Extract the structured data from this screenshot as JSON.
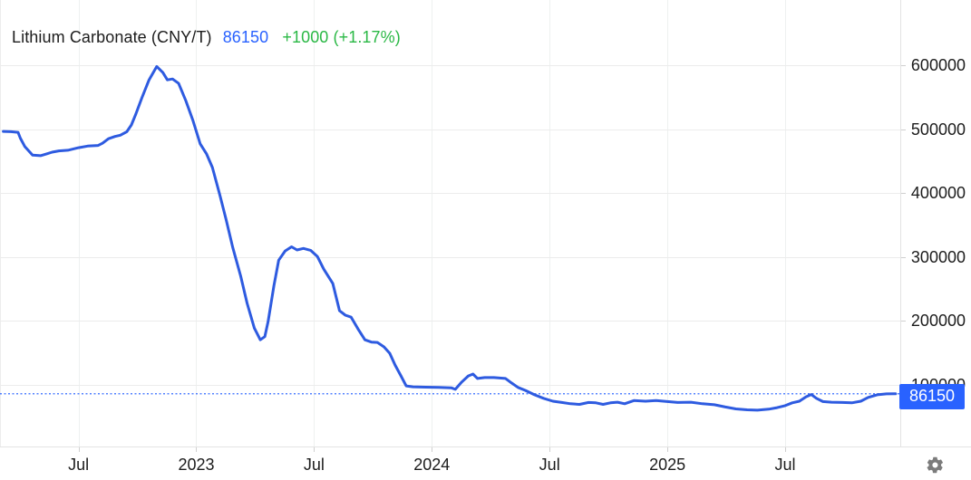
{
  "header": {
    "instrument": "Lithium Carbonate (CNY/T)",
    "price": "86150",
    "change": "+1000 (+1.17%)",
    "price_color": "#2962ff",
    "change_color": "#2ab845",
    "text_color": "#1c1c1c"
  },
  "price_marker": {
    "label": "86150",
    "value": 86150,
    "bg_color": "#2962ff",
    "text_color": "#ffffff"
  },
  "icons": {
    "settings": "gear-icon"
  },
  "chart_data": {
    "type": "line",
    "title": "Lithium Carbonate (CNY/T)",
    "unit": "CNY/T",
    "grid": true,
    "legend": false,
    "line_color": "#2e5be0",
    "current_price_line": {
      "value": 86150,
      "style": "dotted",
      "color": "#2962ff"
    },
    "y_ticks": [
      600000,
      500000,
      400000,
      300000,
      200000,
      100000
    ],
    "ylim": [
      0,
      700000
    ],
    "xlim": [
      "2022-03-01",
      "2025-12-20"
    ],
    "x_ticks": [
      {
        "date": "2022-07-01",
        "label": "Jul"
      },
      {
        "date": "2023-01-01",
        "label": "2023"
      },
      {
        "date": "2023-07-01",
        "label": "Jul"
      },
      {
        "date": "2024-01-01",
        "label": "2024"
      },
      {
        "date": "2024-07-01",
        "label": "Jul"
      },
      {
        "date": "2025-01-01",
        "label": "2025"
      },
      {
        "date": "2025-07-01",
        "label": "Jul"
      }
    ],
    "series": [
      {
        "name": "Lithium Carbonate price",
        "color": "#2e5be0",
        "points": [
          [
            "2022-03-06",
            496500
          ],
          [
            "2022-03-18",
            496000
          ],
          [
            "2022-03-29",
            495000
          ],
          [
            "2022-04-02",
            486000
          ],
          [
            "2022-04-09",
            473000
          ],
          [
            "2022-04-21",
            459500
          ],
          [
            "2022-05-03",
            458500
          ],
          [
            "2022-05-13",
            461500
          ],
          [
            "2022-05-21",
            464000
          ],
          [
            "2022-06-01",
            466000
          ],
          [
            "2022-06-15",
            467000
          ],
          [
            "2022-07-01",
            471000
          ],
          [
            "2022-07-15",
            473500
          ],
          [
            "2022-08-01",
            474500
          ],
          [
            "2022-08-08",
            478000
          ],
          [
            "2022-08-17",
            485000
          ],
          [
            "2022-08-27",
            488500
          ],
          [
            "2022-09-05",
            490500
          ],
          [
            "2022-09-15",
            496000
          ],
          [
            "2022-09-22",
            506500
          ],
          [
            "2022-09-29",
            523500
          ],
          [
            "2022-10-08",
            549000
          ],
          [
            "2022-10-19",
            577000
          ],
          [
            "2022-10-31",
            598000
          ],
          [
            "2022-11-10",
            588500
          ],
          [
            "2022-11-17",
            577000
          ],
          [
            "2022-11-25",
            578500
          ],
          [
            "2022-12-04",
            571500
          ],
          [
            "2022-12-15",
            545000
          ],
          [
            "2022-12-26",
            514000
          ],
          [
            "2023-01-07",
            477000
          ],
          [
            "2023-01-17",
            461000
          ],
          [
            "2023-01-26",
            440000
          ],
          [
            "2023-02-07",
            397500
          ],
          [
            "2023-02-17",
            358000
          ],
          [
            "2023-02-27",
            315000
          ],
          [
            "2023-03-09",
            270000
          ],
          [
            "2023-03-19",
            227500
          ],
          [
            "2023-03-30",
            189000
          ],
          [
            "2023-04-09",
            170500
          ],
          [
            "2023-04-16",
            175500
          ],
          [
            "2023-04-21",
            199000
          ],
          [
            "2023-04-30",
            255000
          ],
          [
            "2023-05-07",
            295000
          ],
          [
            "2023-05-17",
            309500
          ],
          [
            "2023-05-27",
            316000
          ],
          [
            "2023-06-05",
            311000
          ],
          [
            "2023-06-15",
            313500
          ],
          [
            "2023-06-26",
            310500
          ],
          [
            "2023-07-06",
            301000
          ],
          [
            "2023-07-16",
            281000
          ],
          [
            "2023-07-30",
            258500
          ],
          [
            "2023-08-10",
            216000
          ],
          [
            "2023-08-19",
            209000
          ],
          [
            "2023-08-28",
            206000
          ],
          [
            "2023-09-08",
            188000
          ],
          [
            "2023-09-19",
            170500
          ],
          [
            "2023-09-29",
            167000
          ],
          [
            "2023-10-08",
            166500
          ],
          [
            "2023-10-18",
            159500
          ],
          [
            "2023-10-27",
            149500
          ],
          [
            "2023-11-05",
            131000
          ],
          [
            "2023-11-14",
            114000
          ],
          [
            "2023-11-22",
            98500
          ],
          [
            "2023-12-02",
            97000
          ],
          [
            "2023-12-22",
            96500
          ],
          [
            "2024-01-12",
            96000
          ],
          [
            "2024-01-31",
            95500
          ],
          [
            "2024-02-07",
            93000
          ],
          [
            "2024-02-17",
            104500
          ],
          [
            "2024-02-27",
            114000
          ],
          [
            "2024-03-04",
            117000
          ],
          [
            "2024-03-11",
            110000
          ],
          [
            "2024-03-22",
            111500
          ],
          [
            "2024-04-06",
            111500
          ],
          [
            "2024-04-24",
            110000
          ],
          [
            "2024-05-03",
            103000
          ],
          [
            "2024-05-13",
            96000
          ],
          [
            "2024-05-24",
            91500
          ],
          [
            "2024-06-08",
            84500
          ],
          [
            "2024-06-22",
            79000
          ],
          [
            "2024-07-06",
            74500
          ],
          [
            "2024-07-20",
            72500
          ],
          [
            "2024-08-03",
            70500
          ],
          [
            "2024-08-17",
            69500
          ],
          [
            "2024-08-31",
            72500
          ],
          [
            "2024-09-12",
            72000
          ],
          [
            "2024-09-23",
            69500
          ],
          [
            "2024-10-04",
            72000
          ],
          [
            "2024-10-15",
            73000
          ],
          [
            "2024-10-26",
            70500
          ],
          [
            "2024-11-10",
            75500
          ],
          [
            "2024-11-28",
            74500
          ],
          [
            "2024-12-14",
            75500
          ],
          [
            "2025-01-01",
            74000
          ],
          [
            "2025-01-17",
            72500
          ],
          [
            "2025-02-07",
            73000
          ],
          [
            "2025-02-25",
            70500
          ],
          [
            "2025-03-13",
            69000
          ],
          [
            "2025-03-30",
            65500
          ],
          [
            "2025-04-16",
            62500
          ],
          [
            "2025-05-03",
            61000
          ],
          [
            "2025-05-19",
            60500
          ],
          [
            "2025-06-06",
            62000
          ],
          [
            "2025-06-19",
            64500
          ],
          [
            "2025-07-01",
            67500
          ],
          [
            "2025-07-12",
            72000
          ],
          [
            "2025-07-23",
            74500
          ],
          [
            "2025-08-03",
            81500
          ],
          [
            "2025-08-11",
            85000
          ],
          [
            "2025-08-19",
            79000
          ],
          [
            "2025-08-29",
            74000
          ],
          [
            "2025-09-12",
            73000
          ],
          [
            "2025-09-29",
            72500
          ],
          [
            "2025-10-13",
            72000
          ],
          [
            "2025-10-27",
            74500
          ],
          [
            "2025-11-08",
            80500
          ],
          [
            "2025-11-22",
            84500
          ],
          [
            "2025-12-06",
            86000
          ],
          [
            "2025-12-20",
            86150
          ]
        ]
      }
    ]
  }
}
